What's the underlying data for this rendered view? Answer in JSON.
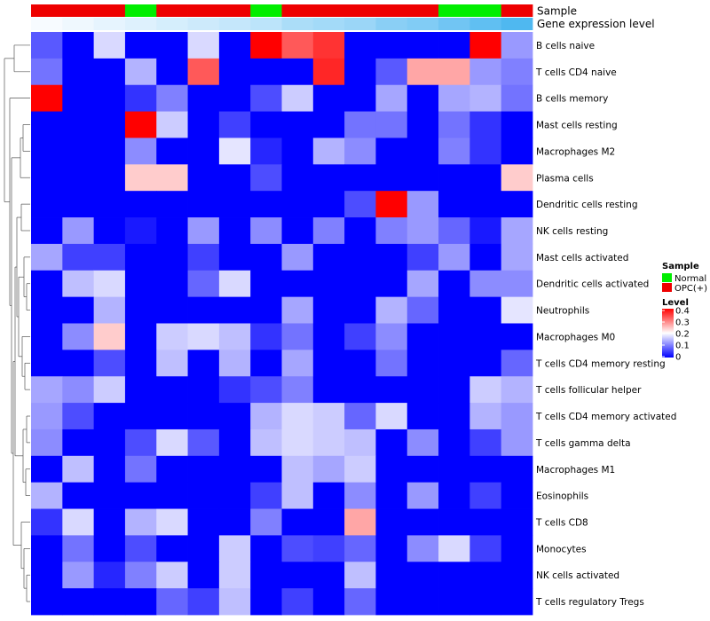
{
  "chart_data": {
    "type": "heatmap",
    "title": "",
    "columns": 16,
    "annotations": {
      "sample_label": "Sample",
      "gene_label": "Gene expression level",
      "sample_groups": [
        "OPC(+)",
        "OPC(+)",
        "OPC(+)",
        "Normal",
        "OPC(+)",
        "OPC(+)",
        "OPC(+)",
        "Normal",
        "OPC(+)",
        "OPC(+)",
        "OPC(+)",
        "OPC(+)",
        "OPC(+)",
        "Normal",
        "Normal",
        "OPC(+)"
      ],
      "gene_expression": [
        0.0,
        0.05,
        0.1,
        0.15,
        0.2,
        0.25,
        0.3,
        0.35,
        0.45,
        0.5,
        0.55,
        0.65,
        0.7,
        0.8,
        0.9,
        1.0
      ]
    },
    "rows": [
      {
        "name": "B cells naive",
        "values": [
          0.07,
          0,
          0.17,
          0,
          0,
          0.17,
          0,
          0.4,
          0.33,
          0.36,
          0,
          0,
          0,
          0,
          0.4,
          0.12
        ]
      },
      {
        "name": "T cells CD4 naive",
        "values": [
          0.09,
          0,
          0,
          0.14,
          0,
          0.33,
          0,
          0,
          0,
          0.37,
          0,
          0.07,
          0.27,
          0.27,
          0.12,
          0.1
        ]
      },
      {
        "name": "B cells memory",
        "values": [
          0.4,
          0,
          0,
          0.04,
          0.1,
          0,
          0,
          0.06,
          0.16,
          0,
          0,
          0.13,
          0,
          0.13,
          0.14,
          0.09
        ]
      },
      {
        "name": "Mast cells resting",
        "values": [
          0,
          0,
          0,
          0.4,
          0.16,
          0,
          0.05,
          0,
          0,
          0,
          0.09,
          0.09,
          0,
          0.09,
          0.04,
          0
        ]
      },
      {
        "name": "Macrophages M2",
        "values": [
          0,
          0,
          0,
          0.11,
          0,
          0,
          0.18,
          0.03,
          0,
          0.14,
          0.11,
          0,
          0,
          0.1,
          0.04,
          0
        ]
      },
      {
        "name": "Plasma cells",
        "values": [
          0,
          0,
          0,
          0.24,
          0.24,
          0,
          0,
          0.06,
          0,
          0,
          0,
          0,
          0,
          0,
          0,
          0.24
        ]
      },
      {
        "name": "Dendritic cells resting",
        "values": [
          0,
          0,
          0,
          0,
          0,
          0,
          0,
          0,
          0,
          0,
          0.06,
          0.4,
          0.12,
          0,
          0,
          0
        ]
      },
      {
        "name": "NK cells resting",
        "values": [
          0,
          0.12,
          0,
          0.02,
          0,
          0.12,
          0,
          0.11,
          0,
          0.1,
          0,
          0.1,
          0.12,
          0.08,
          0.02,
          0.13
        ]
      },
      {
        "name": "Mast cells activated",
        "values": [
          0.13,
          0.05,
          0.05,
          0,
          0,
          0.05,
          0,
          0,
          0.12,
          0,
          0,
          0,
          0.05,
          0.12,
          0,
          0.13
        ]
      },
      {
        "name": "Dendritic cells activated",
        "values": [
          0,
          0.15,
          0.17,
          0,
          0,
          0.08,
          0.17,
          0,
          0,
          0,
          0,
          0,
          0.13,
          0,
          0.11,
          0.11
        ]
      },
      {
        "name": "Neutrophils",
        "values": [
          0,
          0,
          0.14,
          0,
          0,
          0,
          0,
          0,
          0.13,
          0,
          0,
          0.14,
          0.08,
          0,
          0,
          0.18
        ]
      },
      {
        "name": "Macrophages M0",
        "values": [
          0,
          0.11,
          0.24,
          0,
          0.16,
          0.17,
          0.15,
          0.04,
          0.09,
          0,
          0.05,
          0.11,
          0,
          0,
          0,
          0
        ]
      },
      {
        "name": "T cells CD4 memory resting",
        "values": [
          0,
          0,
          0.06,
          0,
          0.15,
          0,
          0.14,
          0,
          0.13,
          0,
          0,
          0.09,
          0,
          0,
          0,
          0.08
        ]
      },
      {
        "name": "T cells follicular helper",
        "values": [
          0.13,
          0.11,
          0.16,
          0,
          0,
          0,
          0.04,
          0.06,
          0.1,
          0,
          0,
          0,
          0,
          0,
          0.16,
          0.14
        ]
      },
      {
        "name": "T cells CD4 memory activated",
        "values": [
          0.12,
          0.06,
          0,
          0,
          0,
          0,
          0,
          0.14,
          0.17,
          0.16,
          0.08,
          0.17,
          0,
          0,
          0.14,
          0.12
        ]
      },
      {
        "name": "T cells gamma delta",
        "values": [
          0.11,
          0,
          0,
          0.06,
          0.17,
          0.07,
          0,
          0.15,
          0.17,
          0.16,
          0.15,
          0,
          0.11,
          0,
          0.05,
          0.12
        ]
      },
      {
        "name": "Macrophages M1",
        "values": [
          0,
          0.15,
          0,
          0.09,
          0,
          0,
          0,
          0,
          0.15,
          0.13,
          0.16,
          0,
          0,
          0,
          0,
          0
        ]
      },
      {
        "name": "Eosinophils",
        "values": [
          0.14,
          0,
          0,
          0,
          0,
          0,
          0,
          0.05,
          0.15,
          0,
          0.11,
          0,
          0.12,
          0,
          0.05,
          0
        ]
      },
      {
        "name": "T cells CD8",
        "values": [
          0.04,
          0.17,
          0,
          0.14,
          0.17,
          0,
          0,
          0.1,
          0,
          0,
          0.27,
          0,
          0,
          0,
          0,
          0
        ]
      },
      {
        "name": "Monocytes",
        "values": [
          0,
          0.09,
          0,
          0.06,
          0,
          0,
          0.16,
          0,
          0.06,
          0.05,
          0.08,
          0,
          0.11,
          0.17,
          0.05,
          0
        ]
      },
      {
        "name": "NK cells activated",
        "values": [
          0,
          0.12,
          0.03,
          0.1,
          0.16,
          0,
          0.16,
          0,
          0,
          0,
          0.15,
          0,
          0,
          0,
          0,
          0
        ]
      },
      {
        "name": "T cells regulatory  Tregs",
        "values": [
          0,
          0,
          0,
          0,
          0.08,
          0.05,
          0.15,
          0,
          0.05,
          0,
          0.08,
          0,
          0,
          0,
          0,
          0
        ]
      }
    ],
    "legends": {
      "sample": {
        "title": "Sample",
        "items": [
          {
            "label": "Normal",
            "color": "#00ee00"
          },
          {
            "label": "OPC(+)",
            "color": "#ee0000"
          }
        ]
      },
      "level": {
        "title": "Level",
        "ticks": [
          "0.4",
          "0.3",
          "0.2",
          "0.1",
          "0"
        ],
        "min": 0,
        "max": 0.4,
        "colors": {
          "low": "#0000ff",
          "mid": "#ffffff",
          "high": "#ff0000"
        }
      }
    },
    "colors": {
      "normal": "#00ee00",
      "opc": "#ee0000",
      "gene_low": "#f7fbff",
      "gene_high": "#4fb8f0"
    }
  }
}
